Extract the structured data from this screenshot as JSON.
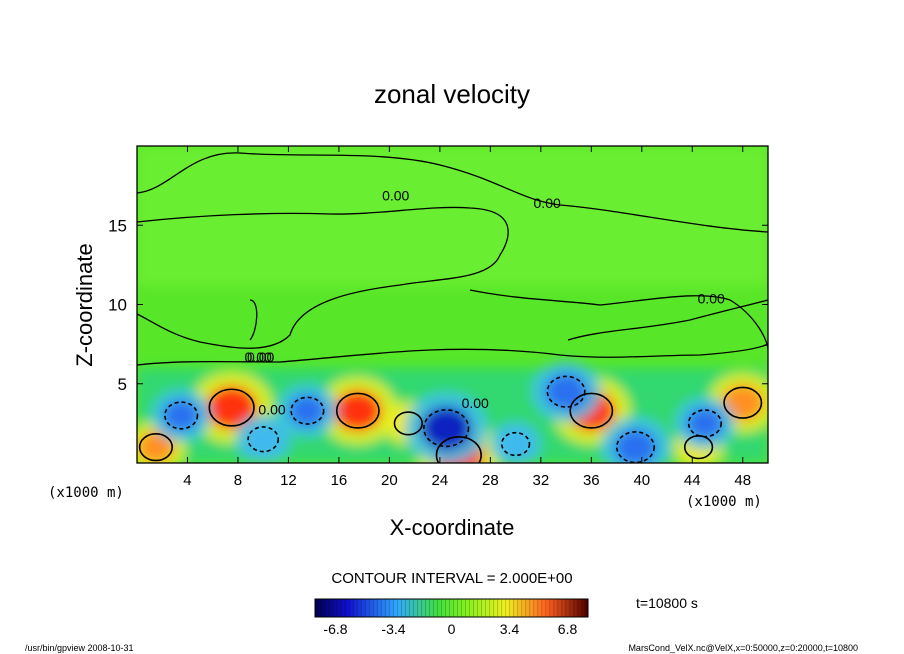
{
  "chart_data": {
    "type": "heatmap",
    "title": "zonal velocity",
    "xlabel": "X-coordinate",
    "ylabel": "Z-coordinate",
    "x_unit_label": "(x1000 m)",
    "z_unit_label": "(x1000 m)",
    "xlim": [
      0,
      50
    ],
    "ylim": [
      0,
      20
    ],
    "x_ticks": [
      "4",
      "8",
      "12",
      "16",
      "20",
      "24",
      "28",
      "32",
      "36",
      "40",
      "44",
      "48"
    ],
    "y_ticks": [
      "5",
      "10",
      "15"
    ],
    "contour_interval_text": "CONTOUR INTERVAL = 2.000E+00",
    "contour_labels": [
      "0.00",
      "0.00",
      "0.00",
      "0.00",
      "0.00",
      "0.00",
      "0.00"
    ],
    "colorbar": {
      "range": [
        -8,
        8
      ],
      "tick_labels": [
        "-6.8",
        "-3.4",
        "0",
        "3.4",
        "6.8"
      ],
      "tick_values": [
        -6.8,
        -3.4,
        0,
        3.4,
        6.8
      ]
    },
    "time_label": "t=10800 s",
    "features": [
      {
        "sign": "positive",
        "x": 7.5,
        "z": 3.5,
        "value": 6.5
      },
      {
        "sign": "positive",
        "x": 17.5,
        "z": 3.3,
        "value": 6.0
      },
      {
        "sign": "positive",
        "x": 25.5,
        "z": 0.5,
        "value": 6.5
      },
      {
        "sign": "positive",
        "x": 36.0,
        "z": 3.3,
        "value": 6.0
      },
      {
        "sign": "positive",
        "x": 48.0,
        "z": 3.8,
        "value": 5.0
      },
      {
        "sign": "positive",
        "x": 1.5,
        "z": 1.0,
        "value": 4.0
      },
      {
        "sign": "positive",
        "x": 21.5,
        "z": 2.5,
        "value": 3.0
      },
      {
        "sign": "positive",
        "x": 44.5,
        "z": 1.0,
        "value": 3.0
      },
      {
        "sign": "negative",
        "x": 3.5,
        "z": 3.0,
        "value": -4.0
      },
      {
        "sign": "negative",
        "x": 13.5,
        "z": 3.3,
        "value": -4.0
      },
      {
        "sign": "negative",
        "x": 24.5,
        "z": 2.2,
        "value": -6.5
      },
      {
        "sign": "negative",
        "x": 34.0,
        "z": 4.5,
        "value": -5.0
      },
      {
        "sign": "negative",
        "x": 39.5,
        "z": 1.0,
        "value": -5.0
      },
      {
        "sign": "negative",
        "x": 45.0,
        "z": 2.5,
        "value": -4.0
      },
      {
        "sign": "negative",
        "x": 10.0,
        "z": 1.5,
        "value": -3.5
      },
      {
        "sign": "negative",
        "x": 30.0,
        "z": 1.2,
        "value": -3.0
      }
    ]
  },
  "footer": {
    "left": "/usr/bin/gpview   2008-10-31",
    "right": "MarsCond_VelX.nc@VelX,x=0:50000,z=0:20000,t=10800"
  }
}
